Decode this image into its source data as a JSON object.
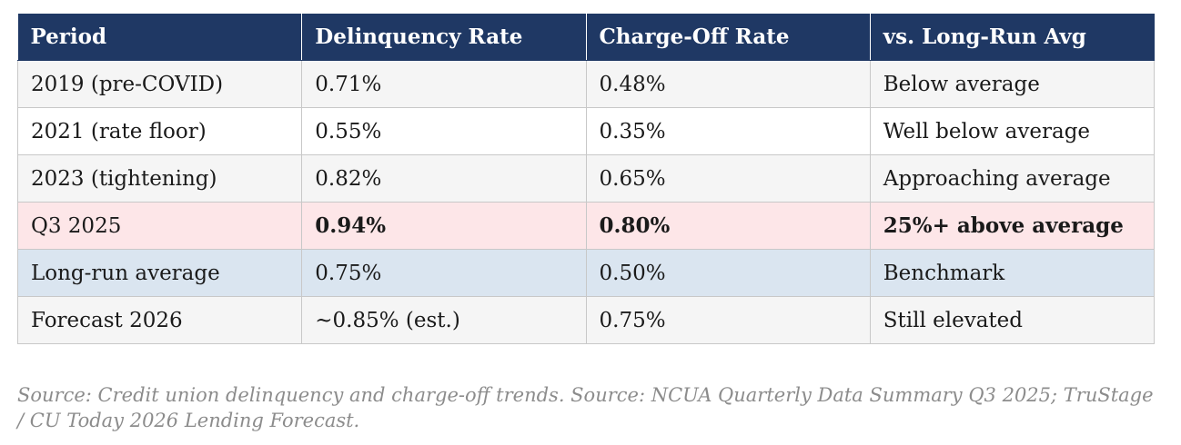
{
  "table": {
    "headers": [
      "Period",
      "Delinquency Rate",
      "Charge-Off Rate",
      "vs. Long-Run Avg"
    ],
    "rows": [
      [
        "2019 (pre-COVID)",
        "0.71%",
        "0.48%",
        "Below average"
      ],
      [
        "2021 (rate floor)",
        "0.55%",
        "0.35%",
        "Well below average"
      ],
      [
        "2023 (tightening)",
        "0.82%",
        "0.65%",
        "Approaching average"
      ],
      [
        "Q3 2025",
        "0.94%",
        "0.80%",
        "25%+ above average"
      ],
      [
        "Long-run average",
        "0.75%",
        "0.50%",
        "Benchmark"
      ],
      [
        "Forecast 2026",
        "~0.85% (est.)",
        "0.75%",
        "Still elevated"
      ]
    ]
  },
  "source_note": "Source: Credit union delinquency and charge-off trends. Source: NCUA Quarterly Data Summary Q3 2025; TruStage / CU Today 2026 Lending Forecast.",
  "colors": {
    "header_bg": "#1f3864",
    "highlight_row_bg": "#fde6e8",
    "highlight_text": "#c00000",
    "benchmark_row_bg": "#dae5f0"
  }
}
